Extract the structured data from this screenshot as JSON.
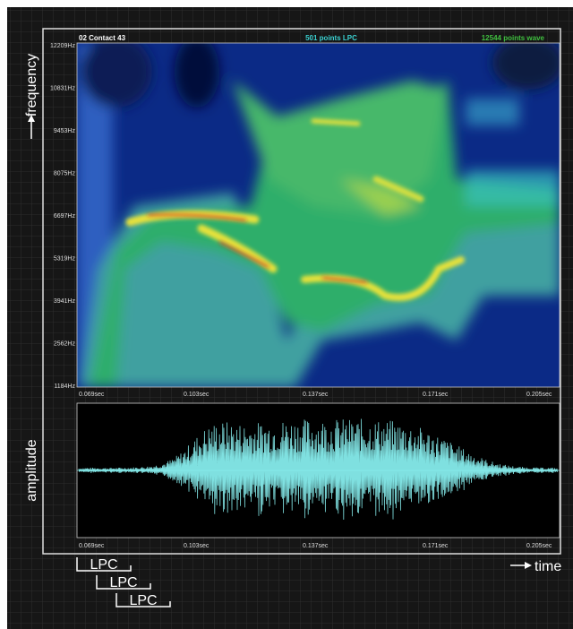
{
  "header": {
    "title": "02 Contact 43",
    "lpc": "501 points LPC",
    "wave": "12544 points wave"
  },
  "spectrogram": {
    "y_labels": [
      "12209Hz",
      "10831Hz",
      "9453Hz",
      "8075Hz",
      "6697Hz",
      "5319Hz",
      "3941Hz",
      "2562Hz",
      "1184Hz"
    ],
    "x_labels": [
      "0.069sec",
      "0.103sec",
      "0.137sec",
      "0.171sec",
      "0.205sec"
    ]
  },
  "waveform": {
    "x_labels": [
      "0.069sec",
      "0.103sec",
      "0.137sec",
      "0.171sec",
      "0.205sec"
    ]
  },
  "axes": {
    "frequency": "frequency",
    "amplitude": "amplitude",
    "time": "time"
  },
  "lpc_windows": [
    "LPC",
    "LPC",
    "LPC"
  ]
}
